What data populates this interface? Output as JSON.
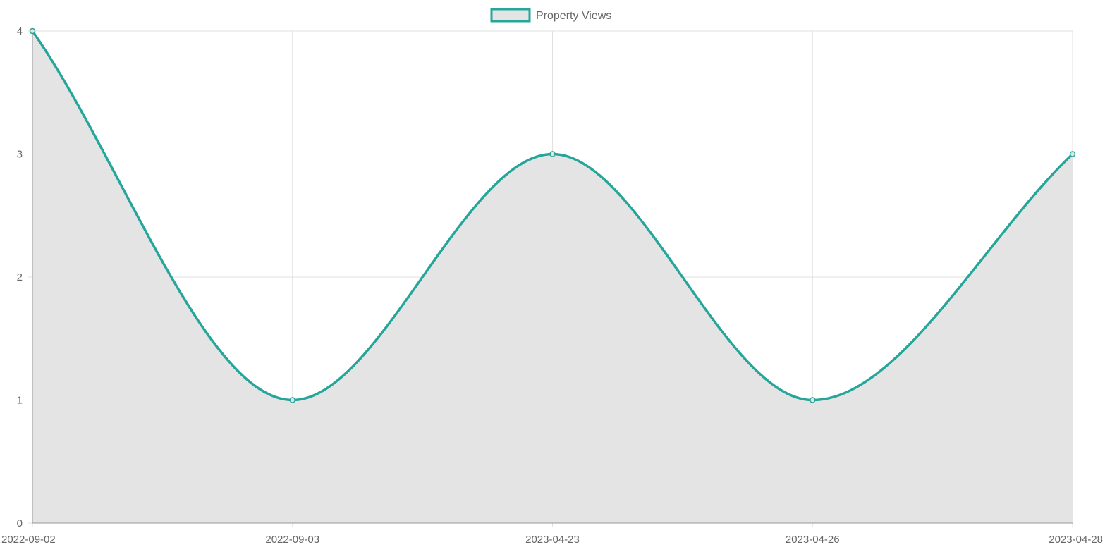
{
  "chart_data": {
    "type": "area",
    "title": "",
    "xlabel": "",
    "ylabel": "",
    "categories": [
      "2022-09-02",
      "2022-09-03",
      "2023-04-23",
      "2023-04-26",
      "2023-04-28"
    ],
    "series": [
      {
        "name": "Property Views",
        "values": [
          4,
          1,
          3,
          1,
          3
        ],
        "line_color": "#26a69a",
        "fill_color": "#e4e4e4"
      }
    ],
    "ylim": [
      0,
      4
    ],
    "yticks": [
      "0",
      "1",
      "2",
      "3",
      "4"
    ],
    "grid": true,
    "grid_color": "#e0e0e0",
    "axis_color": "#999999",
    "smooth": true,
    "legend": {
      "position": "top-center",
      "items": [
        {
          "label": "Property Views",
          "border_color": "#26a69a",
          "fill_color": "#e4e4e4"
        }
      ]
    }
  }
}
